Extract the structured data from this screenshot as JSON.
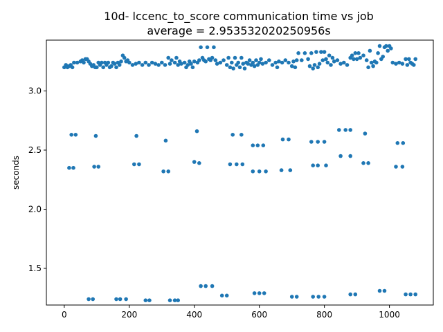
{
  "chart_data": {
    "type": "scatter",
    "title": "10d- lccenc_to_score communication time vs job",
    "subtitle": "average = 2.953532020250956s",
    "xlabel": "",
    "ylabel": "seconds",
    "xlim": [
      -55,
      1135
    ],
    "ylim": [
      1.19,
      3.43
    ],
    "xticks": [
      0,
      200,
      400,
      600,
      800,
      1000
    ],
    "yticks": [
      1.5,
      2.0,
      2.5,
      3.0
    ],
    "xtick_labels": [
      "0",
      "200",
      "400",
      "600",
      "800",
      "1000"
    ],
    "ytick_labels": [
      "1.5",
      "2.0",
      "2.5",
      "3.0"
    ],
    "grid": false,
    "marker_color": "#1f77b4",
    "series": [
      {
        "points": [
          [
            0,
            3.2
          ],
          [
            5,
            3.22
          ],
          [
            10,
            3.2
          ],
          [
            15,
            3.21
          ],
          [
            20,
            3.22
          ],
          [
            25,
            3.2
          ],
          [
            30,
            3.24
          ],
          [
            40,
            3.24
          ],
          [
            50,
            3.25
          ],
          [
            55,
            3.26
          ],
          [
            60,
            3.24
          ],
          [
            65,
            3.27
          ],
          [
            70,
            3.27
          ],
          [
            75,
            3.25
          ],
          [
            80,
            3.23
          ],
          [
            85,
            3.21
          ],
          [
            90,
            3.22
          ],
          [
            95,
            3.2
          ],
          [
            100,
            3.2
          ],
          [
            105,
            3.24
          ],
          [
            110,
            3.22
          ],
          [
            115,
            3.24
          ],
          [
            120,
            3.2
          ],
          [
            125,
            3.24
          ],
          [
            130,
            3.22
          ],
          [
            135,
            3.24
          ],
          [
            140,
            3.2
          ],
          [
            145,
            3.21
          ],
          [
            150,
            3.24
          ],
          [
            155,
            3.23
          ],
          [
            160,
            3.2
          ],
          [
            165,
            3.24
          ],
          [
            170,
            3.22
          ],
          [
            175,
            3.25
          ],
          [
            180,
            3.3
          ],
          [
            185,
            3.28
          ],
          [
            190,
            3.25
          ],
          [
            195,
            3.26
          ],
          [
            200,
            3.24
          ],
          [
            210,
            3.22
          ],
          [
            220,
            3.23
          ],
          [
            230,
            3.24
          ],
          [
            240,
            3.22
          ],
          [
            250,
            3.24
          ],
          [
            260,
            3.22
          ],
          [
            270,
            3.24
          ],
          [
            280,
            3.23
          ],
          [
            290,
            3.22
          ],
          [
            300,
            3.24
          ],
          [
            310,
            3.22
          ],
          [
            320,
            3.28
          ],
          [
            325,
            3.23
          ],
          [
            330,
            3.26
          ],
          [
            340,
            3.24
          ],
          [
            345,
            3.28
          ],
          [
            350,
            3.22
          ],
          [
            355,
            3.25
          ],
          [
            360,
            3.23
          ],
          [
            370,
            3.24
          ],
          [
            375,
            3.2
          ],
          [
            380,
            3.22
          ],
          [
            385,
            3.25
          ],
          [
            390,
            3.23
          ],
          [
            395,
            3.2
          ],
          [
            400,
            3.25
          ],
          [
            410,
            3.24
          ],
          [
            415,
            3.26
          ],
          [
            420,
            3.37
          ],
          [
            425,
            3.28
          ],
          [
            430,
            3.26
          ],
          [
            435,
            3.25
          ],
          [
            440,
            3.37
          ],
          [
            445,
            3.27
          ],
          [
            450,
            3.26
          ],
          [
            455,
            3.28
          ],
          [
            460,
            3.37
          ],
          [
            465,
            3.26
          ],
          [
            470,
            3.23
          ],
          [
            480,
            3.24
          ],
          [
            490,
            3.26
          ],
          [
            500,
            3.22
          ],
          [
            505,
            3.28
          ],
          [
            510,
            3.2
          ],
          [
            515,
            3.24
          ],
          [
            520,
            3.19
          ],
          [
            525,
            3.28
          ],
          [
            530,
            3.22
          ],
          [
            535,
            3.24
          ],
          [
            540,
            3.2
          ],
          [
            545,
            3.28
          ],
          [
            550,
            3.23
          ],
          [
            555,
            3.19
          ],
          [
            560,
            3.24
          ],
          [
            565,
            3.23
          ],
          [
            570,
            3.26
          ],
          [
            575,
            3.22
          ],
          [
            580,
            3.24
          ],
          [
            585,
            3.21
          ],
          [
            590,
            3.26
          ],
          [
            595,
            3.22
          ],
          [
            600,
            3.24
          ],
          [
            605,
            3.27
          ],
          [
            610,
            3.23
          ],
          [
            620,
            3.24
          ],
          [
            630,
            3.26
          ],
          [
            640,
            3.22
          ],
          [
            650,
            3.24
          ],
          [
            655,
            3.2
          ],
          [
            660,
            3.25
          ],
          [
            670,
            3.24
          ],
          [
            680,
            3.26
          ],
          [
            690,
            3.24
          ],
          [
            700,
            3.21
          ],
          [
            705,
            3.25
          ],
          [
            710,
            3.2
          ],
          [
            715,
            3.26
          ],
          [
            720,
            3.32
          ],
          [
            730,
            3.26
          ],
          [
            740,
            3.32
          ],
          [
            750,
            3.27
          ],
          [
            755,
            3.21
          ],
          [
            760,
            3.32
          ],
          [
            765,
            3.19
          ],
          [
            770,
            3.22
          ],
          [
            775,
            3.33
          ],
          [
            780,
            3.2
          ],
          [
            785,
            3.23
          ],
          [
            790,
            3.33
          ],
          [
            795,
            3.26
          ],
          [
            800,
            3.33
          ],
          [
            805,
            3.27
          ],
          [
            810,
            3.24
          ],
          [
            815,
            3.3
          ],
          [
            820,
            3.22
          ],
          [
            825,
            3.28
          ],
          [
            830,
            3.25
          ],
          [
            840,
            3.26
          ],
          [
            850,
            3.23
          ],
          [
            860,
            3.24
          ],
          [
            870,
            3.22
          ],
          [
            880,
            3.28
          ],
          [
            885,
            3.3
          ],
          [
            890,
            3.27
          ],
          [
            895,
            3.32
          ],
          [
            900,
            3.27
          ],
          [
            905,
            3.32
          ],
          [
            910,
            3.28
          ],
          [
            920,
            3.3
          ],
          [
            930,
            3.26
          ],
          [
            935,
            3.2
          ],
          [
            940,
            3.34
          ],
          [
            945,
            3.24
          ],
          [
            950,
            3.21
          ],
          [
            955,
            3.25
          ],
          [
            960,
            3.24
          ],
          [
            965,
            3.32
          ],
          [
            970,
            3.38
          ],
          [
            975,
            3.27
          ],
          [
            980,
            3.29
          ],
          [
            985,
            3.37
          ],
          [
            990,
            3.38
          ],
          [
            995,
            3.34
          ],
          [
            1000,
            3.38
          ],
          [
            1005,
            3.36
          ],
          [
            1010,
            3.24
          ],
          [
            1020,
            3.23
          ],
          [
            1030,
            3.24
          ],
          [
            1040,
            3.23
          ],
          [
            1050,
            3.27
          ],
          [
            1055,
            3.22
          ],
          [
            1060,
            3.27
          ],
          [
            1065,
            3.24
          ],
          [
            1070,
            3.23
          ],
          [
            1075,
            3.22
          ],
          [
            1080,
            3.27
          ],
          [
            15,
            2.35
          ],
          [
            22,
            2.63
          ],
          [
            28,
            2.35
          ],
          [
            35,
            2.63
          ],
          [
            92,
            2.36
          ],
          [
            97,
            2.62
          ],
          [
            105,
            2.36
          ],
          [
            215,
            2.38
          ],
          [
            222,
            2.62
          ],
          [
            230,
            2.38
          ],
          [
            305,
            2.32
          ],
          [
            312,
            2.58
          ],
          [
            320,
            2.32
          ],
          [
            400,
            2.4
          ],
          [
            408,
            2.66
          ],
          [
            415,
            2.39
          ],
          [
            510,
            2.38
          ],
          [
            518,
            2.63
          ],
          [
            530,
            2.38
          ],
          [
            545,
            2.63
          ],
          [
            548,
            2.38
          ],
          [
            580,
            2.32
          ],
          [
            580,
            2.54
          ],
          [
            595,
            2.54
          ],
          [
            600,
            2.32
          ],
          [
            612,
            2.54
          ],
          [
            620,
            2.32
          ],
          [
            668,
            2.33
          ],
          [
            672,
            2.59
          ],
          [
            690,
            2.59
          ],
          [
            695,
            2.33
          ],
          [
            760,
            2.57
          ],
          [
            765,
            2.37
          ],
          [
            780,
            2.37
          ],
          [
            780,
            2.57
          ],
          [
            800,
            2.57
          ],
          [
            805,
            2.37
          ],
          [
            845,
            2.67
          ],
          [
            850,
            2.45
          ],
          [
            865,
            2.67
          ],
          [
            880,
            2.45
          ],
          [
            880,
            2.67
          ],
          [
            920,
            2.39
          ],
          [
            925,
            2.64
          ],
          [
            935,
            2.39
          ],
          [
            1020,
            2.36
          ],
          [
            1025,
            2.56
          ],
          [
            1040,
            2.36
          ],
          [
            1042,
            2.56
          ],
          [
            75,
            1.24
          ],
          [
            88,
            1.24
          ],
          [
            160,
            1.24
          ],
          [
            172,
            1.24
          ],
          [
            190,
            1.24
          ],
          [
            250,
            1.23
          ],
          [
            262,
            1.23
          ],
          [
            325,
            1.23
          ],
          [
            340,
            1.23
          ],
          [
            350,
            1.23
          ],
          [
            420,
            1.35
          ],
          [
            435,
            1.35
          ],
          [
            455,
            1.35
          ],
          [
            485,
            1.27
          ],
          [
            500,
            1.27
          ],
          [
            585,
            1.29
          ],
          [
            600,
            1.29
          ],
          [
            615,
            1.29
          ],
          [
            700,
            1.26
          ],
          [
            715,
            1.26
          ],
          [
            765,
            1.26
          ],
          [
            782,
            1.26
          ],
          [
            800,
            1.26
          ],
          [
            880,
            1.28
          ],
          [
            895,
            1.28
          ],
          [
            970,
            1.31
          ],
          [
            985,
            1.31
          ],
          [
            1050,
            1.28
          ],
          [
            1065,
            1.28
          ],
          [
            1080,
            1.28
          ]
        ]
      }
    ]
  }
}
